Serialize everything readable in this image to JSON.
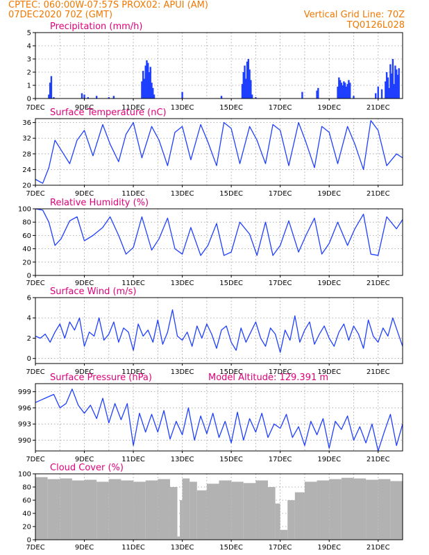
{
  "header": {
    "line1_left": "CPTEC:   060:00W-07:57S   PROX02: APUI (AM)",
    "line2_left": "07DEC2020 70Z (GMT)",
    "line2_right": "Vertical Grid Line: 70Z",
    "line3_right": "TQ0126L028"
  },
  "colors": {
    "header": "#f07800",
    "title": "#e0007a",
    "series": "#1f3fff",
    "cloud": "#b2b2b2"
  },
  "chart_data": [
    {
      "type": "bar",
      "title": "Precipitation (mm/h)",
      "ylim": [
        0,
        5
      ],
      "yticks": [
        0,
        1,
        2,
        3,
        4,
        5
      ],
      "xticks": [
        "7DEC",
        "9DEC",
        "11DEC",
        "13DEC",
        "15DEC",
        "17DEC",
        "19DEC",
        "21DEC"
      ],
      "xlim_days": [
        7,
        22
      ],
      "x_days": [
        7.55,
        7.6,
        7.65,
        7.75,
        8.9,
        9.0,
        9.15,
        9.5,
        10.0,
        10.2,
        11.35,
        11.4,
        11.45,
        11.5,
        11.55,
        11.6,
        11.65,
        11.7,
        11.75,
        11.8,
        11.85,
        13.0,
        14.6,
        15.45,
        15.5,
        15.55,
        15.6,
        15.65,
        15.7,
        15.75,
        15.8,
        15.85,
        16.0,
        17.9,
        18.5,
        18.55,
        19.35,
        19.4,
        19.45,
        19.5,
        19.55,
        19.6,
        19.65,
        19.7,
        19.75,
        19.8,
        19.85,
        20.0,
        20.9,
        21.0,
        21.15,
        21.3,
        21.35,
        21.4,
        21.45,
        21.5,
        21.55,
        21.6,
        21.65,
        21.7,
        21.75,
        21.8,
        21.85
      ],
      "values": [
        0.3,
        1.2,
        1.7,
        0.1,
        0.4,
        0.3,
        0.1,
        0.2,
        0.1,
        0.2,
        1.3,
        2.1,
        1.5,
        2.5,
        2.9,
        2.7,
        2.0,
        2.4,
        1.2,
        0.8,
        0.3,
        0.5,
        0.2,
        1.1,
        2.0,
        2.5,
        1.5,
        2.8,
        3.0,
        2.2,
        1.4,
        0.3,
        0.1,
        0.5,
        0.6,
        0.8,
        0.9,
        1.6,
        1.4,
        1.2,
        1.0,
        1.3,
        1.2,
        0.9,
        1.1,
        1.4,
        1.2,
        0.2,
        0.4,
        0.9,
        0.7,
        1.3,
        2.0,
        1.6,
        0.8,
        2.6,
        1.9,
        3.0,
        1.1,
        2.5,
        2.2,
        1.8,
        2.3
      ]
    },
    {
      "type": "line",
      "title": "Surface Temperature (nC)",
      "ylim": [
        20,
        37
      ],
      "yticks": [
        20,
        24,
        28,
        32,
        36
      ],
      "xticks": [
        "7DEC",
        "9DEC",
        "11DEC",
        "13DEC",
        "15DEC",
        "17DEC",
        "19DEC",
        "21DEC"
      ],
      "xlim_days": [
        7,
        22
      ],
      "x_days": [
        7.0,
        7.3,
        7.55,
        7.8,
        8.05,
        8.4,
        8.7,
        9.0,
        9.35,
        9.75,
        10.05,
        10.4,
        10.7,
        11.0,
        11.35,
        11.75,
        12.05,
        12.4,
        12.7,
        13.0,
        13.35,
        13.75,
        14.05,
        14.4,
        14.7,
        15.0,
        15.35,
        15.75,
        16.05,
        16.4,
        16.7,
        17.0,
        17.35,
        17.75,
        18.05,
        18.4,
        18.7,
        19.0,
        19.35,
        19.75,
        20.05,
        20.4,
        20.7,
        21.0,
        21.35,
        21.75,
        22.0
      ],
      "values": [
        21.5,
        20.5,
        24.5,
        31.5,
        29.0,
        25.5,
        31.5,
        34.0,
        27.5,
        35.5,
        30.5,
        26.0,
        33.0,
        36.0,
        27.0,
        35.0,
        31.5,
        25.0,
        33.5,
        35.0,
        26.5,
        35.5,
        31.0,
        25.0,
        36.0,
        34.5,
        25.5,
        35.0,
        31.5,
        25.5,
        35.5,
        34.0,
        25.0,
        36.0,
        31.0,
        24.5,
        35.0,
        33.5,
        25.5,
        35.0,
        30.5,
        24.0,
        36.5,
        34.0,
        25.0,
        28.0,
        27.0
      ]
    },
    {
      "type": "line",
      "title": "Relative Humidity (%)",
      "ylim": [
        0,
        100
      ],
      "yticks": [
        0,
        20,
        40,
        60,
        80,
        100
      ],
      "xticks": [
        "7DEC",
        "9DEC",
        "11DEC",
        "13DEC",
        "15DEC",
        "17DEC",
        "19DEC",
        "21DEC"
      ],
      "xlim_days": [
        7,
        22
      ],
      "x_days": [
        7.0,
        7.3,
        7.55,
        7.8,
        8.05,
        8.4,
        8.7,
        9.0,
        9.35,
        9.75,
        10.05,
        10.4,
        10.7,
        11.0,
        11.35,
        11.75,
        12.05,
        12.4,
        12.7,
        13.0,
        13.35,
        13.75,
        14.05,
        14.4,
        14.7,
        15.0,
        15.35,
        15.75,
        16.05,
        16.4,
        16.7,
        17.0,
        17.35,
        17.75,
        18.05,
        18.4,
        18.7,
        19.0,
        19.35,
        19.75,
        20.05,
        20.4,
        20.7,
        21.0,
        21.35,
        21.75,
        22.0
      ],
      "values": [
        100,
        98,
        80,
        45,
        55,
        82,
        88,
        52,
        60,
        72,
        88,
        60,
        32,
        42,
        88,
        38,
        55,
        86,
        40,
        32,
        72,
        30,
        45,
        78,
        30,
        35,
        80,
        62,
        30,
        80,
        30,
        45,
        82,
        35,
        60,
        86,
        32,
        48,
        80,
        45,
        70,
        92,
        32,
        30,
        88,
        70,
        84
      ]
    },
    {
      "type": "line",
      "title": "Surface Wind (m/s)",
      "ylim": [
        -0.5,
        6
      ],
      "yticks": [
        0,
        2,
        4,
        6
      ],
      "xticks": [
        "7DEC",
        "9DEC",
        "11DEC",
        "13DEC",
        "15DEC",
        "17DEC",
        "19DEC",
        "21DEC"
      ],
      "xlim_days": [
        7,
        22
      ],
      "x_days": [
        7.0,
        7.2,
        7.4,
        7.6,
        7.8,
        8.0,
        8.2,
        8.4,
        8.6,
        8.8,
        9.0,
        9.2,
        9.4,
        9.6,
        9.8,
        10.0,
        10.2,
        10.4,
        10.6,
        10.8,
        11.0,
        11.2,
        11.4,
        11.6,
        11.8,
        12.0,
        12.2,
        12.4,
        12.6,
        12.8,
        13.0,
        13.2,
        13.4,
        13.6,
        13.8,
        14.0,
        14.2,
        14.4,
        14.6,
        14.8,
        15.0,
        15.2,
        15.4,
        15.6,
        15.8,
        16.0,
        16.2,
        16.4,
        16.6,
        16.8,
        17.0,
        17.2,
        17.4,
        17.6,
        17.8,
        18.0,
        18.2,
        18.4,
        18.6,
        18.8,
        19.0,
        19.2,
        19.4,
        19.6,
        19.8,
        20.0,
        20.2,
        20.4,
        20.6,
        20.8,
        21.0,
        21.2,
        21.4,
        21.6,
        21.8,
        22.0
      ],
      "values": [
        2.2,
        2.0,
        2.4,
        1.6,
        2.6,
        3.4,
        2.0,
        3.6,
        2.8,
        4.0,
        1.2,
        2.6,
        2.2,
        4.0,
        1.8,
        2.4,
        3.6,
        1.6,
        3.0,
        2.6,
        0.8,
        3.4,
        2.2,
        2.8,
        1.6,
        3.8,
        1.4,
        2.6,
        4.8,
        2.2,
        1.8,
        2.6,
        1.2,
        3.2,
        2.0,
        3.4,
        2.4,
        1.0,
        2.8,
        3.2,
        1.6,
        0.8,
        3.0,
        1.6,
        2.6,
        3.6,
        2.0,
        1.2,
        3.0,
        2.4,
        0.6,
        2.8,
        1.8,
        4.2,
        1.6,
        2.8,
        3.6,
        1.4,
        2.4,
        3.2,
        2.0,
        1.2,
        2.6,
        3.4,
        1.8,
        3.2,
        2.4,
        1.0,
        3.8,
        2.2,
        1.6,
        3.0,
        2.2,
        4.0,
        2.6,
        1.2
      ]
    },
    {
      "type": "line",
      "title": "Surface Pressure (hPa)",
      "subtitle": "Model Altitude:  129.391  m",
      "ylim": [
        988,
        1000.5
      ],
      "yticks": [
        990,
        993,
        996,
        999
      ],
      "xticks": [
        "7DEC",
        "9DEC",
        "11DEC",
        "13DEC",
        "15DEC",
        "17DEC",
        "19DEC",
        "21DEC"
      ],
      "xlim_days": [
        7,
        22
      ],
      "x_days": [
        7.0,
        7.25,
        7.5,
        7.75,
        8.0,
        8.25,
        8.5,
        8.75,
        9.0,
        9.25,
        9.5,
        9.75,
        10.0,
        10.25,
        10.5,
        10.75,
        11.0,
        11.25,
        11.5,
        11.75,
        12.0,
        12.25,
        12.5,
        12.75,
        13.0,
        13.25,
        13.5,
        13.75,
        14.0,
        14.25,
        14.5,
        14.75,
        15.0,
        15.25,
        15.5,
        15.75,
        16.0,
        16.25,
        16.5,
        16.75,
        17.0,
        17.25,
        17.5,
        17.75,
        18.0,
        18.25,
        18.5,
        18.75,
        19.0,
        19.25,
        19.5,
        19.75,
        20.0,
        20.25,
        20.5,
        20.75,
        21.0,
        21.25,
        21.5,
        21.75,
        22.0
      ],
      "values": [
        997.0,
        997.5,
        998.0,
        998.5,
        996.0,
        996.8,
        999.5,
        996.5,
        995.0,
        996.5,
        994.0,
        997.8,
        993.2,
        996.8,
        993.8,
        996.8,
        989.0,
        995.0,
        991.5,
        994.8,
        991.5,
        995.5,
        990.2,
        993.5,
        991.0,
        996.0,
        990.0,
        994.5,
        991.2,
        995.0,
        990.5,
        993.5,
        989.5,
        995.2,
        990.0,
        994.0,
        991.5,
        995.0,
        990.5,
        993.0,
        992.2,
        994.8,
        990.5,
        992.5,
        989.0,
        993.5,
        991.0,
        994.0,
        988.5,
        993.5,
        992.0,
        994.5,
        990.0,
        992.5,
        989.5,
        993.0,
        988.0,
        991.5,
        994.8,
        989.0,
        993.0
      ]
    },
    {
      "type": "area",
      "title": "Cloud Cover (%)",
      "ylim": [
        0,
        100
      ],
      "yticks": [
        0,
        20,
        40,
        60,
        80,
        100
      ],
      "xticks": [
        "7DEC",
        "9DEC",
        "11DEC",
        "13DEC",
        "15DEC",
        "17DEC",
        "19DEC",
        "21DEC"
      ],
      "xlim_days": [
        7,
        22
      ],
      "x_days": [
        7.0,
        7.5,
        8.0,
        8.5,
        9.0,
        9.5,
        10.0,
        10.5,
        11.0,
        11.5,
        12.0,
        12.5,
        12.8,
        12.9,
        13.0,
        13.3,
        13.6,
        14.0,
        14.5,
        15.0,
        15.5,
        16.0,
        16.5,
        16.8,
        17.0,
        17.3,
        17.6,
        18.0,
        18.5,
        19.0,
        19.5,
        20.0,
        20.5,
        21.0,
        21.5,
        22.0
      ],
      "values": [
        95,
        92,
        93,
        90,
        91,
        88,
        92,
        90,
        88,
        90,
        92,
        80,
        5,
        60,
        93,
        88,
        75,
        85,
        90,
        88,
        86,
        90,
        80,
        55,
        15,
        60,
        72,
        88,
        90,
        92,
        94,
        93,
        91,
        92,
        89,
        90
      ]
    }
  ]
}
